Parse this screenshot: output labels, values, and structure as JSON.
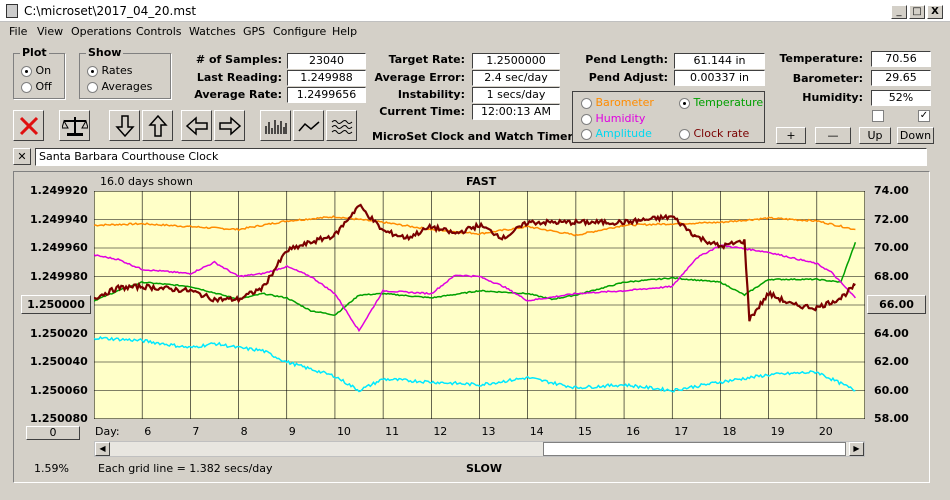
{
  "window": {
    "title": "C:\\microset\\2017_04_20.mst",
    "min": "_",
    "max": "□",
    "close": "X"
  },
  "menu": [
    "File",
    "View",
    "Operations",
    "Controls",
    "Watches",
    "GPS",
    "Configure",
    "Help"
  ],
  "plot": {
    "title": "Plot",
    "on": "On",
    "off": "Off"
  },
  "show": {
    "title": "Show",
    "rates": "Rates",
    "averages": "Averages"
  },
  "stats1": {
    "samples_label": "# of Samples:",
    "samples": "23040",
    "last_label": "Last Reading:",
    "last": "1.249988",
    "avg_label": "Average Rate:",
    "avg": "1.2499656"
  },
  "stats2": {
    "target_label": "Target Rate:",
    "target": "1.2500000",
    "err_label": "Average Error:",
    "err": "2.4 sec/day",
    "inst_label": "Instability:",
    "inst": "1 secs/day",
    "time_label": "Current Time:",
    "time": "12:00:13 AM"
  },
  "app_title": "MicroSet Clock and Watch Timer",
  "pend": {
    "len_label": "Pend Length:",
    "len": "61.144 in",
    "adj_label": "Pend Adjust:",
    "adj": "0.00337 in"
  },
  "env": {
    "temp_label": "Temperature:",
    "temp": "70.56",
    "baro_label": "Barometer:",
    "baro": "29.65",
    "hum_label": "Humidity:",
    "hum": "52%"
  },
  "legend": {
    "barometer": "Barometer",
    "temperature": "Temperature",
    "humidity": "Humidity",
    "amplitude": "Amplitude",
    "clockrate": "Clock rate"
  },
  "small_buttons": {
    "plus": "+",
    "minus": "—",
    "up": "Up",
    "down": "Down"
  },
  "clock_name": "Santa Barbara Courthouse Clock",
  "colors": {
    "plot_bg": "#ffffc8",
    "barometer": "#ff8c00",
    "temperature": "#00a000",
    "humidity": "#e000e0",
    "amplitude": "#00e8ff",
    "clock_rate": "#7a0000"
  },
  "chart_data": {
    "type": "line",
    "top_label": "FAST",
    "bottom_label": "SLOW",
    "days_shown": "16.0 days shown",
    "grid_note": "Each grid line = 1.382 secs/day",
    "percent": "1.59%",
    "day_label": "Day:",
    "left_ticks": [
      "1.249920",
      "1.249940",
      "1.249960",
      "1.249980",
      "1.250000",
      "1.250020",
      "1.250040",
      "1.250060",
      "1.250080"
    ],
    "right_ticks": [
      "74.00",
      "72.00",
      "70.00",
      "68.00",
      "66.00",
      "64.00",
      "62.00",
      "60.00",
      "58.00"
    ],
    "x_ticks": [
      "6",
      "7",
      "8",
      "9",
      "10",
      "11",
      "12",
      "13",
      "14",
      "15",
      "16",
      "17",
      "18",
      "19",
      "20"
    ],
    "left_center_button": "1.250000",
    "right_center_button": "66.00",
    "left_bottom_button": "0",
    "xlim": [
      5,
      21
    ],
    "ylim_right": [
      58,
      74
    ],
    "ylim_left": [
      1.25008,
      1.24992
    ],
    "series": [
      {
        "name": "Barometer",
        "x": [
          5.0,
          6.0,
          7.0,
          8.0,
          9.0,
          10.0,
          11.0,
          12.0,
          13.0,
          14.0,
          15.0,
          16.0,
          17.0,
          18.0,
          19.0,
          20.0,
          20.8
        ],
        "y": [
          71.6,
          71.7,
          71.5,
          71.3,
          71.9,
          72.2,
          71.8,
          71.3,
          71.0,
          71.5,
          70.9,
          71.6,
          71.7,
          71.8,
          72.1,
          71.9,
          71.3
        ]
      },
      {
        "name": "Temperature",
        "x": [
          5.0,
          5.5,
          6.0,
          7.0,
          8.0,
          8.5,
          9.0,
          9.5,
          10.0,
          10.5,
          11.0,
          12.0,
          13.0,
          14.0,
          14.5,
          15.0,
          16.0,
          17.0,
          18.0,
          18.5,
          19.0,
          20.0,
          20.5,
          20.8
        ],
        "y": [
          66.3,
          67.0,
          67.6,
          67.3,
          66.4,
          66.8,
          66.5,
          65.6,
          65.3,
          66.7,
          66.8,
          66.5,
          67.0,
          66.8,
          66.4,
          66.7,
          67.6,
          67.9,
          67.6,
          66.7,
          67.8,
          67.8,
          67.6,
          70.4
        ]
      },
      {
        "name": "Humidity",
        "x": [
          5.0,
          5.5,
          6.0,
          7.0,
          7.5,
          8.0,
          8.5,
          9.0,
          9.5,
          10.0,
          10.5,
          11.0,
          12.0,
          12.5,
          13.0,
          13.5,
          14.0,
          15.0,
          16.0,
          17.0,
          17.5,
          18.0,
          19.0,
          20.0,
          20.3,
          20.8
        ],
        "y": [
          69.5,
          69.2,
          68.5,
          68.2,
          69.0,
          68.0,
          68.2,
          68.7,
          68.0,
          66.8,
          64.2,
          67.0,
          66.8,
          68.1,
          68.0,
          67.3,
          66.3,
          66.8,
          67.0,
          67.3,
          69.3,
          70.2,
          69.7,
          68.9,
          68.3,
          66.5
        ]
      },
      {
        "name": "Amplitude",
        "x": [
          5.0,
          6.0,
          7.0,
          7.5,
          8.0,
          8.5,
          9.0,
          10.0,
          10.5,
          11.0,
          12.0,
          13.0,
          14.0,
          15.0,
          16.0,
          17.0,
          18.0,
          19.0,
          20.0,
          20.8
        ],
        "y": [
          63.7,
          63.5,
          63.0,
          63.3,
          63.0,
          62.8,
          62.0,
          61.0,
          60.0,
          60.8,
          60.6,
          60.4,
          60.9,
          60.2,
          60.4,
          60.0,
          60.6,
          61.1,
          61.3,
          60.0
        ]
      },
      {
        "name": "Clock rate",
        "x": [
          5.0,
          5.5,
          6.0,
          7.0,
          7.5,
          8.0,
          8.5,
          9.0,
          9.5,
          10.0,
          10.5,
          11.0,
          11.5,
          12.0,
          12.5,
          13.0,
          13.5,
          14.0,
          15.0,
          16.0,
          16.5,
          17.0,
          17.5,
          18.0,
          18.5,
          18.6,
          19.0,
          19.5,
          20.0,
          20.5,
          20.8
        ],
        "y": [
          66.5,
          67.2,
          67.3,
          67.0,
          66.4,
          66.4,
          67.2,
          69.8,
          70.4,
          70.9,
          73.0,
          71.2,
          70.7,
          71.5,
          71.0,
          71.6,
          70.7,
          71.8,
          71.8,
          71.8,
          72.0,
          72.2,
          70.8,
          70.1,
          70.5,
          65.0,
          66.8,
          66.0,
          65.8,
          66.5,
          67.4
        ]
      }
    ]
  }
}
